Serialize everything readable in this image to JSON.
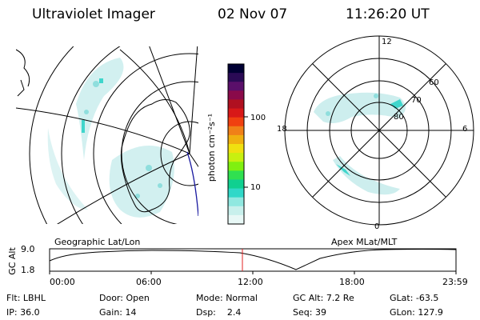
{
  "header": {
    "instrument": "Ultraviolet Imager",
    "date": "02 Nov 07",
    "time": "11:26:20 UT"
  },
  "left_panel": {
    "label": "Geographic Lat/Lon"
  },
  "right_panel": {
    "label": "Apex MLat/MLT",
    "mlt_labels": [
      "12",
      "18",
      "6",
      "0"
    ],
    "lat_labels": [
      "60",
      "70",
      "80"
    ]
  },
  "colorbar": {
    "label": "photon cm⁻²s⁻¹",
    "ticks": [
      {
        "label": "100",
        "value": 100
      },
      {
        "label": "10",
        "value": 10
      }
    ],
    "colors": [
      "#000033",
      "#2a0a55",
      "#5a0f6a",
      "#8a0a4a",
      "#b01020",
      "#d81818",
      "#f04010",
      "#f08018",
      "#f0b010",
      "#f0e010",
      "#c8f010",
      "#80f010",
      "#30e050",
      "#10d090",
      "#30d8c8",
      "#90e8e0",
      "#c8f0ec",
      "#e8f8f6"
    ]
  },
  "altitude_plot": {
    "ylabel": "GC Alt",
    "yticks": [
      "9.0",
      "1.8"
    ],
    "xticks": [
      "00:00",
      "06:00",
      "12:00",
      "18:00",
      "23:59"
    ],
    "current_time_marker": "11:26"
  },
  "info": {
    "row1": [
      {
        "key": "Flt:",
        "value": "LBHL"
      },
      {
        "key": "Door:",
        "value": "Open"
      },
      {
        "key": "Mode:",
        "value": "Normal"
      },
      {
        "key": "GC Alt:",
        "value": "7.2 Re"
      },
      {
        "key": "GLat:",
        "value": "-63.5"
      }
    ],
    "row2": [
      {
        "key": "IP:",
        "value": "36.0"
      },
      {
        "key": "Gain:",
        "value": "14"
      },
      {
        "key": "Dsp:",
        "value": "2.4"
      },
      {
        "key": "Seq:",
        "value": "39"
      },
      {
        "key": "GLon:",
        "value": "127.9"
      }
    ]
  },
  "colors": {
    "aurora_light": "#cdeeee",
    "aurora_mid": "#8fdedd",
    "aurora_strong": "#3fd6cc",
    "marker": "#e02020",
    "track": "#1a1aa0"
  }
}
